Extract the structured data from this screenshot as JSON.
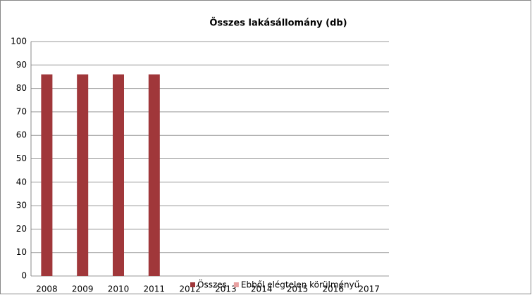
{
  "chart_data": {
    "type": "bar",
    "title": "Összes lakásállomány (db)",
    "categories": [
      "2008",
      "2009",
      "2010",
      "2011",
      "2012",
      "2013",
      "2014",
      "2015",
      "2016",
      "2017"
    ],
    "series": [
      {
        "name": "Összes",
        "color": "#a0373a",
        "values": [
          86,
          86,
          86,
          86,
          null,
          null,
          null,
          null,
          null,
          null
        ]
      },
      {
        "name": "Ebből elégtelen körülményű",
        "color": "#e8a0a0",
        "values": [
          null,
          null,
          null,
          null,
          null,
          null,
          null,
          null,
          null,
          null
        ]
      }
    ],
    "ylim": [
      0,
      100
    ],
    "yticks": [
      0,
      10,
      20,
      30,
      40,
      50,
      60,
      70,
      80,
      90,
      100
    ],
    "grid": true
  }
}
